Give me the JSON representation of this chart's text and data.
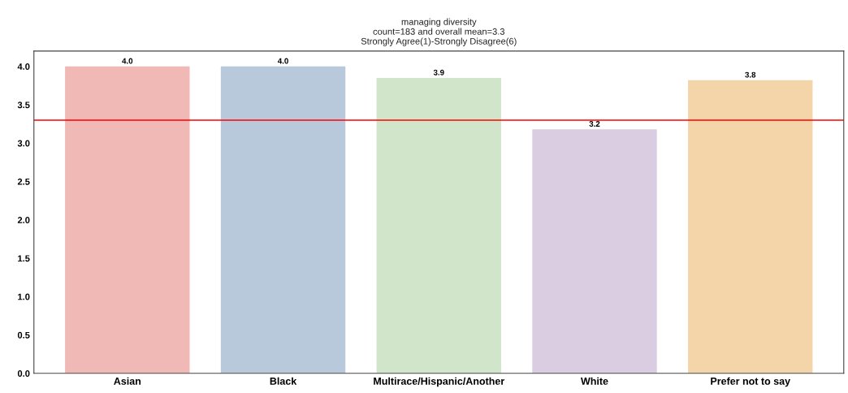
{
  "chart_data": {
    "type": "bar",
    "title": "managing diversity\ncount=183 and overall mean=3.3\nStrongly Agree(1)-Strongly Disagree(6)",
    "categories": [
      "Asian",
      "Black",
      "Multirace/Hispanic/Another",
      "White",
      "Prefer not to say"
    ],
    "values": [
      4.0,
      4.0,
      3.85,
      3.18,
      3.82
    ],
    "colors": [
      "#f0b9b5",
      "#b8c9dc",
      "#d0e5c9",
      "#dacde2",
      "#f4d4a9"
    ],
    "value_labels": [
      "4.0",
      "4.0",
      "3.9",
      "3.2",
      "3.8"
    ],
    "ylim": [
      0,
      4.2
    ],
    "yticks": [
      {
        "value": 0,
        "label": "0.0"
      },
      {
        "value": 0.5,
        "label": "0.5"
      },
      {
        "value": 1,
        "label": "1.0"
      },
      {
        "value": 1.5,
        "label": "1.5"
      },
      {
        "value": 2,
        "label": "2.0"
      },
      {
        "value": 2.5,
        "label": "2.5"
      },
      {
        "value": 3,
        "label": "3.0"
      },
      {
        "value": 3.5,
        "label": "3.5"
      },
      {
        "value": 4,
        "label": "4.0"
      }
    ],
    "ref_lines": [
      {
        "axis": "y",
        "value": 3.3,
        "color": "#ff0000"
      }
    ],
    "grid": false
  }
}
